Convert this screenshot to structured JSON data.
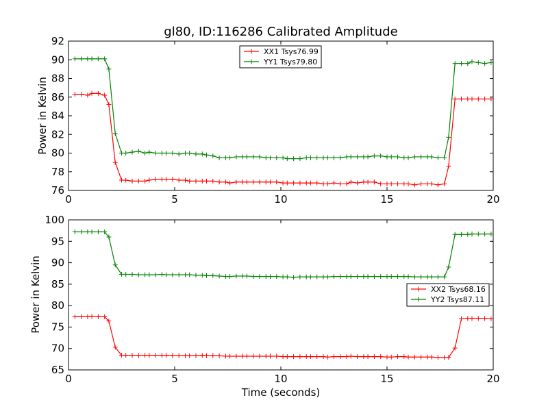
{
  "chart_data": [
    {
      "type": "line",
      "title": "gl80, ID:116286 Calibrated Amplitude",
      "xlabel": "",
      "ylabel": "Power in Kelvin",
      "xlim": [
        0,
        20
      ],
      "ylim": [
        76,
        92
      ],
      "x_ticks": [
        "0",
        "5",
        "10",
        "15",
        "20"
      ],
      "y_ticks": [
        "76",
        "78",
        "80",
        "82",
        "84",
        "86",
        "88",
        "90",
        "92"
      ],
      "legend_position": "top-center",
      "grid": false,
      "series": [
        {
          "name": "XX1 Tsys76.99",
          "color": "#ff0000",
          "x": [
            0.3,
            0.6,
            0.9,
            1.1,
            1.4,
            1.7,
            1.9,
            2.2,
            2.5,
            2.7,
            3.0,
            3.3,
            3.6,
            3.8,
            4.1,
            4.4,
            4.6,
            4.9,
            5.2,
            5.5,
            5.7,
            6.0,
            6.3,
            6.5,
            6.8,
            7.1,
            7.4,
            7.6,
            7.9,
            8.2,
            8.4,
            8.7,
            9.0,
            9.3,
            9.5,
            9.8,
            10.1,
            10.3,
            10.6,
            10.9,
            11.2,
            11.4,
            11.7,
            12.0,
            12.2,
            12.5,
            12.8,
            13.1,
            13.3,
            13.6,
            13.9,
            14.1,
            14.4,
            14.7,
            15.0,
            15.2,
            15.5,
            15.8,
            16.0,
            16.3,
            16.6,
            16.9,
            17.1,
            17.4,
            17.7,
            17.9,
            18.2,
            18.5,
            18.8,
            19.0,
            19.3,
            19.6,
            19.9
          ],
          "values": [
            86.3,
            86.3,
            86.2,
            86.4,
            86.4,
            86.2,
            85.2,
            79.0,
            77.1,
            77.1,
            77.0,
            77.0,
            77.0,
            77.1,
            77.2,
            77.2,
            77.2,
            77.2,
            77.1,
            77.1,
            77.0,
            77.0,
            77.0,
            77.0,
            77.0,
            76.9,
            76.9,
            76.8,
            76.9,
            76.9,
            76.9,
            76.9,
            76.9,
            76.9,
            76.9,
            76.9,
            76.8,
            76.8,
            76.8,
            76.8,
            76.8,
            76.8,
            76.8,
            76.7,
            76.7,
            76.8,
            76.7,
            76.7,
            76.9,
            76.8,
            76.9,
            76.9,
            76.9,
            76.7,
            76.7,
            76.7,
            76.7,
            76.7,
            76.7,
            76.6,
            76.7,
            76.7,
            76.7,
            76.6,
            76.7,
            78.6,
            85.8,
            85.8,
            85.8,
            85.8,
            85.8,
            85.8,
            85.8
          ]
        },
        {
          "name": "YY1 Tsys79.80",
          "color": "#008000",
          "x": [
            0.3,
            0.6,
            0.9,
            1.1,
            1.4,
            1.7,
            1.9,
            2.2,
            2.5,
            2.7,
            3.0,
            3.3,
            3.6,
            3.8,
            4.1,
            4.4,
            4.6,
            4.9,
            5.2,
            5.5,
            5.7,
            6.0,
            6.3,
            6.5,
            6.8,
            7.1,
            7.4,
            7.6,
            7.9,
            8.2,
            8.4,
            8.7,
            9.0,
            9.3,
            9.5,
            9.8,
            10.1,
            10.3,
            10.6,
            10.9,
            11.2,
            11.4,
            11.7,
            12.0,
            12.2,
            12.5,
            12.8,
            13.1,
            13.3,
            13.6,
            13.9,
            14.1,
            14.4,
            14.7,
            15.0,
            15.2,
            15.5,
            15.8,
            16.0,
            16.3,
            16.6,
            16.9,
            17.1,
            17.4,
            17.7,
            17.9,
            18.2,
            18.5,
            18.8,
            19.0,
            19.3,
            19.6,
            19.9
          ],
          "values": [
            90.1,
            90.1,
            90.1,
            90.1,
            90.1,
            90.1,
            89.0,
            82.1,
            80.0,
            80.0,
            80.1,
            80.2,
            80.0,
            80.1,
            80.0,
            80.0,
            80.0,
            80.0,
            79.9,
            80.0,
            80.0,
            79.9,
            79.9,
            79.8,
            79.7,
            79.5,
            79.5,
            79.5,
            79.6,
            79.6,
            79.6,
            79.6,
            79.6,
            79.5,
            79.5,
            79.5,
            79.5,
            79.4,
            79.4,
            79.4,
            79.5,
            79.5,
            79.5,
            79.5,
            79.5,
            79.5,
            79.5,
            79.6,
            79.6,
            79.6,
            79.6,
            79.6,
            79.7,
            79.7,
            79.6,
            79.6,
            79.6,
            79.5,
            79.5,
            79.6,
            79.6,
            79.6,
            79.6,
            79.5,
            79.5,
            81.7,
            89.6,
            89.6,
            89.6,
            89.8,
            89.7,
            89.6,
            89.7
          ]
        }
      ]
    },
    {
      "type": "line",
      "title": "",
      "xlabel": "Time (seconds)",
      "ylabel": "Power in Kelvin",
      "xlim": [
        0,
        20
      ],
      "ylim": [
        65,
        100
      ],
      "x_ticks": [
        "0",
        "5",
        "10",
        "15",
        "20"
      ],
      "y_ticks": [
        "65",
        "70",
        "75",
        "80",
        "85",
        "90",
        "95",
        "100"
      ],
      "legend_position": "center-right",
      "grid": false,
      "series": [
        {
          "name": "XX2 Tsys68.16",
          "color": "#ff0000",
          "x": [
            0.3,
            0.6,
            0.9,
            1.1,
            1.4,
            1.7,
            1.9,
            2.2,
            2.5,
            2.7,
            3.0,
            3.3,
            3.6,
            3.8,
            4.1,
            4.4,
            4.6,
            4.9,
            5.2,
            5.5,
            5.7,
            6.0,
            6.3,
            6.5,
            6.8,
            7.1,
            7.4,
            7.6,
            7.9,
            8.2,
            8.4,
            8.7,
            9.0,
            9.3,
            9.5,
            9.8,
            10.1,
            10.3,
            10.6,
            10.9,
            11.2,
            11.4,
            11.7,
            12.0,
            12.2,
            12.5,
            12.8,
            13.1,
            13.3,
            13.6,
            13.9,
            14.1,
            14.4,
            14.7,
            15.0,
            15.2,
            15.5,
            15.8,
            16.0,
            16.3,
            16.6,
            16.9,
            17.1,
            17.4,
            17.7,
            17.9,
            18.2,
            18.5,
            18.8,
            19.0,
            19.3,
            19.6,
            19.9
          ],
          "values": [
            77.4,
            77.4,
            77.4,
            77.5,
            77.4,
            77.4,
            76.4,
            70.3,
            68.4,
            68.4,
            68.4,
            68.3,
            68.4,
            68.4,
            68.4,
            68.4,
            68.4,
            68.3,
            68.3,
            68.3,
            68.3,
            68.3,
            68.4,
            68.3,
            68.3,
            68.3,
            68.2,
            68.2,
            68.2,
            68.2,
            68.2,
            68.2,
            68.2,
            68.2,
            68.2,
            68.2,
            68.1,
            68.1,
            68.1,
            68.1,
            68.1,
            68.1,
            68.1,
            68.1,
            68.0,
            68.1,
            68.1,
            68.1,
            68.2,
            68.1,
            68.1,
            68.1,
            68.1,
            68.1,
            68.0,
            68.0,
            68.1,
            68.1,
            68.0,
            68.0,
            68.0,
            68.0,
            68.0,
            67.9,
            67.9,
            67.9,
            70.1,
            76.9,
            77.0,
            77.0,
            77.0,
            77.0,
            76.9
          ]
        },
        {
          "name": "YY2 Tsys87.11",
          "color": "#008000",
          "x": [
            0.3,
            0.6,
            0.9,
            1.1,
            1.4,
            1.7,
            1.9,
            2.2,
            2.5,
            2.7,
            3.0,
            3.3,
            3.6,
            3.8,
            4.1,
            4.4,
            4.6,
            4.9,
            5.2,
            5.5,
            5.7,
            6.0,
            6.3,
            6.5,
            6.8,
            7.1,
            7.4,
            7.6,
            7.9,
            8.2,
            8.4,
            8.7,
            9.0,
            9.3,
            9.5,
            9.8,
            10.1,
            10.3,
            10.6,
            10.9,
            11.2,
            11.4,
            11.7,
            12.0,
            12.2,
            12.5,
            12.8,
            13.1,
            13.3,
            13.6,
            13.9,
            14.1,
            14.4,
            14.7,
            15.0,
            15.2,
            15.5,
            15.8,
            16.0,
            16.3,
            16.6,
            16.9,
            17.1,
            17.4,
            17.7,
            17.9,
            18.2,
            18.5,
            18.8,
            19.0,
            19.3,
            19.6,
            19.9
          ],
          "values": [
            97.2,
            97.2,
            97.2,
            97.2,
            97.2,
            97.2,
            96.0,
            89.5,
            87.3,
            87.3,
            87.3,
            87.2,
            87.2,
            87.2,
            87.2,
            87.3,
            87.2,
            87.2,
            87.2,
            87.2,
            87.2,
            87.1,
            87.1,
            87.0,
            87.0,
            86.9,
            86.8,
            86.8,
            86.9,
            86.9,
            86.9,
            86.8,
            86.8,
            86.8,
            86.8,
            86.8,
            86.7,
            86.7,
            86.6,
            86.7,
            86.7,
            86.7,
            86.7,
            86.7,
            86.7,
            86.8,
            86.8,
            86.8,
            86.8,
            86.8,
            86.8,
            86.8,
            86.8,
            86.8,
            86.8,
            86.8,
            86.8,
            86.8,
            86.8,
            86.7,
            86.7,
            86.7,
            86.7,
            86.7,
            86.7,
            89.0,
            96.6,
            96.6,
            96.6,
            96.7,
            96.7,
            96.7,
            96.7
          ]
        }
      ]
    }
  ]
}
